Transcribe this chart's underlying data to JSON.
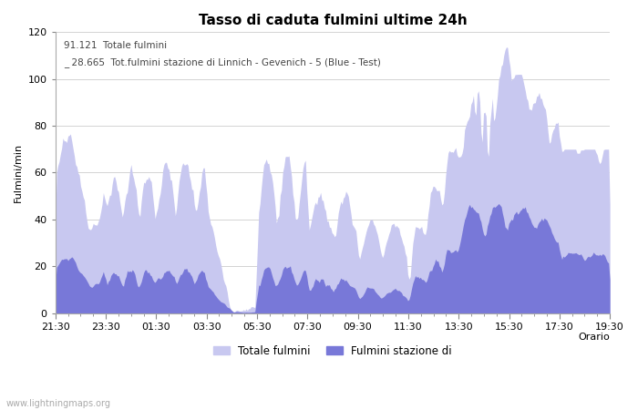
{
  "title": "Tasso di caduta fulmini ultime 24h",
  "xlabel": "Orario",
  "ylabel": "Fulmini/min",
  "annotation_line1": "91.121  Totale fulmini",
  "annotation_line2": "_ 28.665  Tot.fulmini stazione di Linnich - Gevenich - 5 (Blue - Test)",
  "legend_label1": "Totale fulmini",
  "legend_label2": "Fulmini stazione di",
  "watermark": "www.lightningmaps.org",
  "ylim": [
    0,
    120
  ],
  "color_total": "#c8c8f0",
  "color_station": "#7878d8",
  "background_color": "#ffffff",
  "tick_labels": [
    "21:30",
    "23:30",
    "01:30",
    "03:30",
    "05:30",
    "07:30",
    "09:30",
    "11:30",
    "13:30",
    "15:30",
    "17:30",
    "19:30"
  ],
  "title_fontsize": 11,
  "label_fontsize": 8,
  "tick_fontsize": 8
}
